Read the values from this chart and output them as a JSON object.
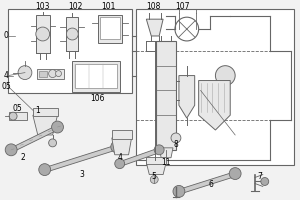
{
  "bg": "white",
  "lc": "#666666",
  "fc_light": "#e8e8e8",
  "fc_mid": "#cccccc",
  "fc_dark": "#aaaaaa",
  "figsize": [
    3.0,
    2.0
  ],
  "dpi": 100
}
